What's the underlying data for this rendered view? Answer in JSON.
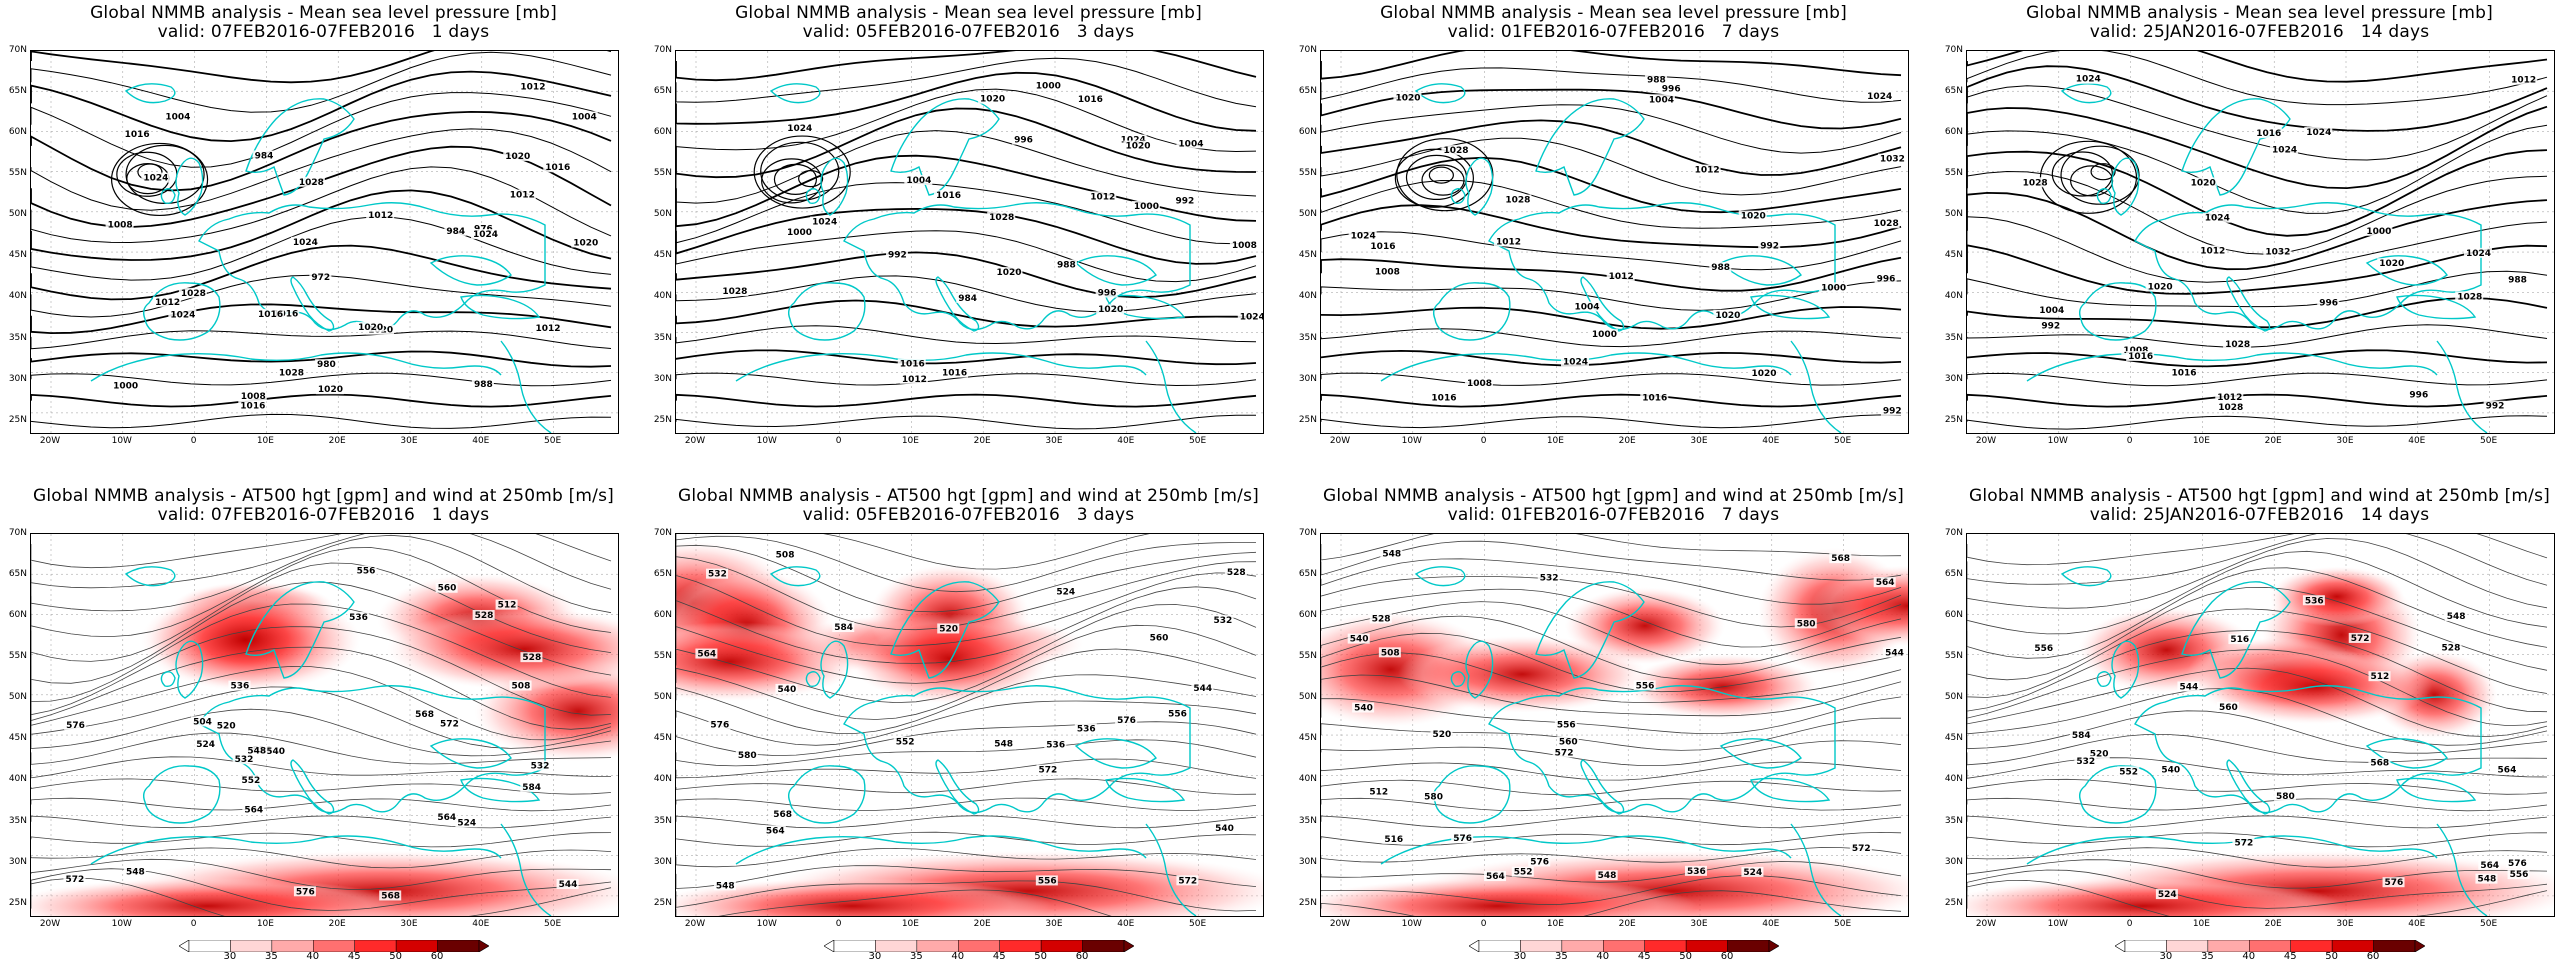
{
  "panels_top": [
    {
      "title_line1": "Global NMMB analysis - Mean sea level pressure [mb]",
      "title_line2": "valid: 07FEB2016-07FEB2016   1 days",
      "contour_labels": [
        "984",
        "988",
        "976",
        "972",
        "980",
        "984",
        "1024",
        "1012",
        "1016",
        "1020",
        "1024",
        "1004",
        "1008",
        "1016",
        "1000",
        "1004",
        "1020",
        "1028",
        "1008",
        "1012",
        "1020",
        "1016",
        "1028",
        "1024",
        "1016",
        "1012",
        "1028",
        "1024",
        "1012",
        "1020",
        "1012",
        "1020",
        "1016"
      ]
    },
    {
      "title_line1": "Global NMMB analysis - Mean sea level pressure [mb]",
      "title_line2": "valid: 05FEB2016-07FEB2016   3 days",
      "contour_labels": [
        "992",
        "1000",
        "1004",
        "1000",
        "996",
        "984",
        "988",
        "992",
        "996",
        "1000",
        "1004",
        "1008",
        "1012",
        "1016",
        "1020",
        "1012",
        "1016",
        "1024",
        "1024",
        "1020",
        "1024",
        "1028",
        "1024",
        "1028",
        "1016",
        "1020",
        "1020",
        "1016"
      ]
    },
    {
      "title_line1": "Global NMMB analysis - Mean sea level pressure [mb]",
      "title_line2": "valid: 01FEB2016-07FEB2016   7 days",
      "contour_labels": [
        "996",
        "988",
        "992",
        "992",
        "988",
        "996",
        "1000",
        "1004",
        "1008",
        "1012",
        "1016",
        "1020",
        "1024",
        "1028",
        "1032",
        "1012",
        "1016",
        "1020",
        "1008",
        "1000",
        "1004",
        "1024",
        "1028",
        "1028",
        "1024",
        "1020",
        "1016",
        "1020",
        "1012"
      ]
    },
    {
      "title_line1": "Global NMMB analysis - Mean sea level pressure [mb]",
      "title_line2": "valid: 25JAN2016-07FEB2016   14 days",
      "contour_labels": [
        "996",
        "988",
        "992",
        "992",
        "996",
        "1000",
        "1004",
        "1008",
        "1012",
        "1016",
        "1020",
        "1024",
        "1028",
        "1032",
        "1012",
        "1016",
        "1012",
        "1028",
        "1020",
        "1024",
        "1028",
        "1024",
        "1024",
        "1028",
        "1016",
        "1024",
        "1020"
      ]
    }
  ],
  "panels_bottom": [
    {
      "title_line1": "Global NMMB analysis - AT500 hgt [gpm] and wind at 250mb [m/s]",
      "title_line2": "valid: 07FEB2016-07FEB2016   1 days",
      "contour_labels": [
        "512",
        "524",
        "528",
        "532",
        "536",
        "508",
        "544",
        "504",
        "516",
        "520",
        "524",
        "528",
        "532",
        "536",
        "540",
        "548",
        "552",
        "556",
        "564",
        "548",
        "568",
        "572",
        "576",
        "584",
        "560",
        "564",
        "568",
        "572",
        "576"
      ]
    },
    {
      "title_line1": "Global NMMB analysis - AT500 hgt [gpm] and wind at 250mb [m/s]",
      "title_line2": "valid: 05FEB2016-07FEB2016   3 days",
      "contour_labels": [
        "520",
        "524",
        "528",
        "532",
        "536",
        "540",
        "508",
        "532",
        "536",
        "540",
        "544",
        "548",
        "552",
        "556",
        "560",
        "564",
        "568",
        "572",
        "576",
        "580",
        "548",
        "556",
        "564",
        "572",
        "576",
        "584"
      ]
    },
    {
      "title_line1": "Global NMMB analysis - AT500 hgt [gpm] and wind at 250mb [m/s]",
      "title_line2": "valid: 01FEB2016-07FEB2016   7 days",
      "contour_labels": [
        "508",
        "512",
        "516",
        "520",
        "524",
        "528",
        "532",
        "536",
        "540",
        "544",
        "548",
        "552",
        "556",
        "560",
        "564",
        "568",
        "572",
        "576",
        "580",
        "540",
        "548",
        "556",
        "564",
        "572",
        "576",
        "580"
      ]
    },
    {
      "title_line1": "Global NMMB analysis - AT500 hgt [gpm] and wind at 250mb [m/s]",
      "title_line2": "valid: 25JAN2016-07FEB2016   14 days",
      "contour_labels": [
        "512",
        "516",
        "520",
        "524",
        "528",
        "532",
        "536",
        "540",
        "544",
        "548",
        "552",
        "556",
        "560",
        "564",
        "568",
        "572",
        "576",
        "580",
        "548",
        "556",
        "564",
        "572",
        "576",
        "584"
      ]
    }
  ],
  "axes": {
    "lat_labels": [
      "70N",
      "65N",
      "60N",
      "55N",
      "50N",
      "45N",
      "40N",
      "35N",
      "30N",
      "25N"
    ],
    "lon_labels": [
      "20W",
      "10W",
      "0",
      "10E",
      "20E",
      "30E",
      "40E",
      "50E"
    ]
  },
  "colorbar": {
    "labels": [
      "30",
      "35",
      "40",
      "45",
      "50",
      "60"
    ],
    "colors": [
      "#ffffff",
      "#ffd6d6",
      "#ffaaaa",
      "#ff7070",
      "#ff2a2a",
      "#d40000",
      "#6a0000"
    ]
  },
  "colors": {
    "coast": "#00c8c8",
    "contour": "#000000",
    "grid": "#999999"
  }
}
